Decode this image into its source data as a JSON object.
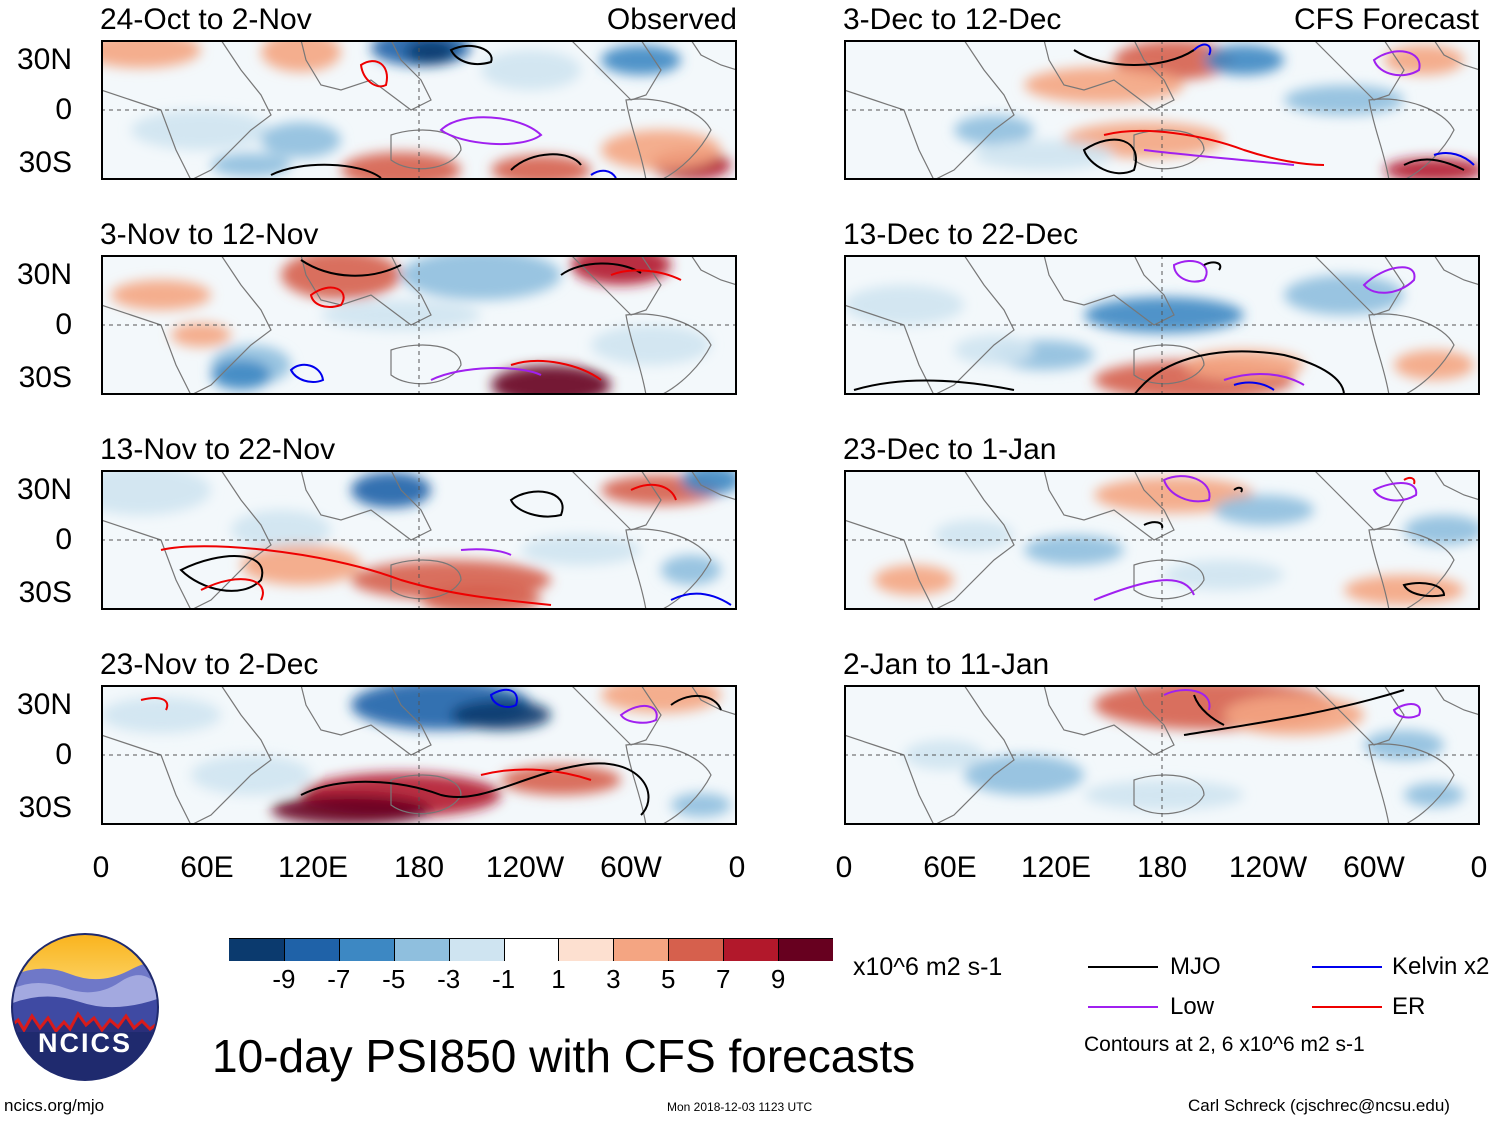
{
  "header": {
    "left_label": "Observed",
    "right_label": "CFS Forecast"
  },
  "panels": [
    {
      "title": "24-Oct to 2-Nov",
      "column": "observed"
    },
    {
      "title": "3-Nov to 12-Nov",
      "column": "observed"
    },
    {
      "title": "13-Nov to 22-Nov",
      "column": "observed"
    },
    {
      "title": "23-Nov to 2-Dec",
      "column": "observed"
    },
    {
      "title": "3-Dec to 12-Dec",
      "column": "forecast"
    },
    {
      "title": "13-Dec to 22-Dec",
      "column": "forecast"
    },
    {
      "title": "23-Dec to 1-Jan",
      "column": "forecast"
    },
    {
      "title": "2-Jan to 11-Jan",
      "column": "forecast"
    }
  ],
  "lat_labels": [
    "30N",
    "0",
    "30S"
  ],
  "lon_labels": [
    "0",
    "60E",
    "120E",
    "180",
    "120W",
    "60W",
    "0"
  ],
  "colorbar": {
    "colors": [
      "#0b3a6e",
      "#1f62a8",
      "#3d88c3",
      "#8fbfde",
      "#cfe4f1",
      "#ffffff",
      "#fde0d0",
      "#f4a582",
      "#d6604d",
      "#b2182b",
      "#67001f"
    ],
    "labels": [
      "-9",
      "-7",
      "-5",
      "-3",
      "-1",
      "1",
      "3",
      "5",
      "7",
      "9"
    ],
    "units": "x10^6 m2 s-1"
  },
  "legend": {
    "items": [
      {
        "label": "MJO",
        "color": "#000000"
      },
      {
        "label": "Kelvin x2",
        "color": "#0000ee"
      },
      {
        "label": "Low",
        "color": "#a020f0"
      },
      {
        "label": "ER",
        "color": "#ee0000"
      }
    ],
    "contours_note": "Contours at 2, 6 x10^6 m2 s-1"
  },
  "footer": {
    "main_title": "10-day PSI850 with CFS forecasts",
    "website": "ncics.org/mjo",
    "timestamp": "Mon 2018-12-03 1123 UTC",
    "author": "Carl Schreck (cjschrec@ncsu.edu)",
    "logo_text": "NCICS"
  }
}
